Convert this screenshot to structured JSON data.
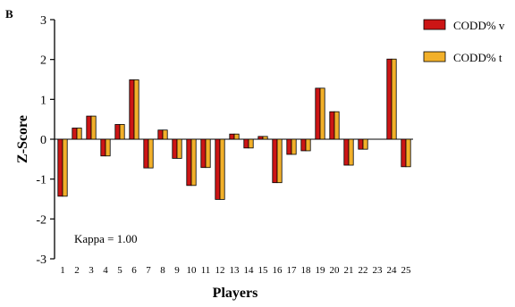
{
  "panel_label": "B",
  "chart_data": {
    "type": "bar",
    "xlabel": "Players",
    "ylabel": "Z-Score",
    "ylim": [
      -3,
      3
    ],
    "yticks": [
      -3,
      -2,
      -1,
      0,
      1,
      2,
      3
    ],
    "categories": [
      "1",
      "2",
      "3",
      "4",
      "5",
      "6",
      "7",
      "8",
      "9",
      "10",
      "11",
      "12",
      "13",
      "14",
      "15",
      "16",
      "17",
      "18",
      "19",
      "20",
      "21",
      "22",
      "23",
      "24",
      "25"
    ],
    "series": [
      {
        "name": "CODD% v",
        "color": "#cc1515",
        "values": [
          -1.43,
          0.28,
          0.58,
          -0.42,
          0.37,
          1.49,
          -0.72,
          0.23,
          -0.48,
          -1.16,
          -0.71,
          -1.51,
          0.13,
          -0.22,
          0.07,
          -1.09,
          -0.38,
          -0.29,
          1.28,
          0.69,
          -0.65,
          -0.25,
          0.0,
          2.01,
          -0.69
        ]
      },
      {
        "name": "CODD% t",
        "color": "#f2b02a",
        "values": [
          -1.43,
          0.28,
          0.58,
          -0.42,
          0.37,
          1.49,
          -0.72,
          0.23,
          -0.48,
          -1.16,
          -0.71,
          -1.51,
          0.13,
          -0.22,
          0.07,
          -1.09,
          -0.38,
          -0.29,
          1.28,
          0.69,
          -0.65,
          -0.25,
          0.0,
          2.01,
          -0.69
        ]
      }
    ],
    "legend_position": "top-right",
    "annotation": "Kappa = 1.00",
    "grid": false
  }
}
